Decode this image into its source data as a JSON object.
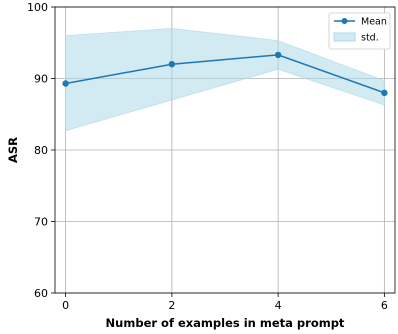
{
  "chart_data": {
    "type": "line",
    "title": "",
    "xlabel": "Number of examples in meta prompt",
    "ylabel": "ASR",
    "x": [
      0,
      2,
      4,
      6
    ],
    "xticks": [
      "0",
      "2",
      "4",
      "6"
    ],
    "yticks": [
      "60",
      "70",
      "80",
      "90",
      "100"
    ],
    "xlim": [
      -0.2,
      6.2
    ],
    "ylim": [
      60,
      100
    ],
    "grid": true,
    "legend": {
      "placement": "top-right",
      "entries": [
        "Mean",
        "std."
      ]
    },
    "series": [
      {
        "name": "Mean",
        "values": [
          89.3,
          92.0,
          93.3,
          88.0
        ],
        "color": "#1f77b4"
      }
    ],
    "band": {
      "name": "std.",
      "lower": [
        82.7,
        87.0,
        91.3,
        86.3
      ],
      "upper": [
        96.0,
        97.0,
        95.3,
        89.7
      ],
      "color": "#add8e6"
    }
  }
}
